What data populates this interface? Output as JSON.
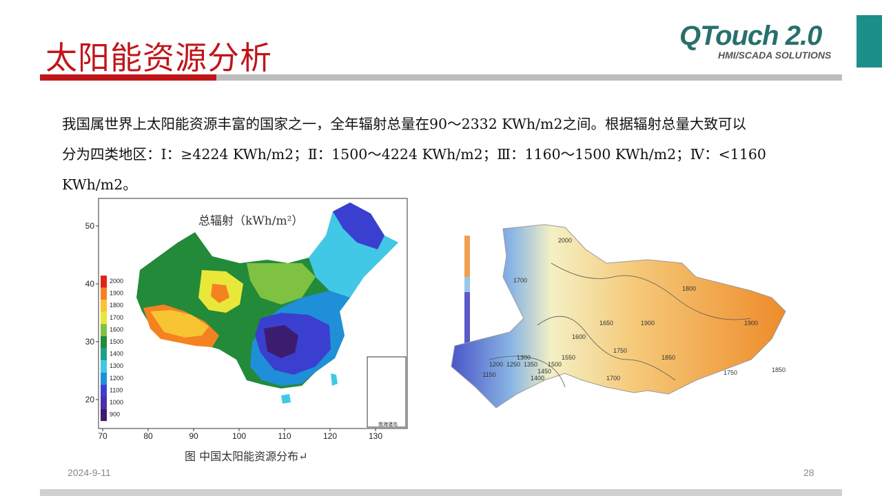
{
  "slide": {
    "title": "太阳能资源分析",
    "paragraph_line1": "我国属世界上太阳能资源丰富的国家之一，全年辐射总量在90～2332 KWh/m2之间。根据辐射总量大致可以",
    "paragraph_line2": "分为四类地区：Ⅰ：≥4224 KWh/m2；Ⅱ：1500～4224 KWh/m2；Ⅲ：1160～1500 KWh/m2；Ⅳ：<1160",
    "paragraph_line3": "KWh/m2。",
    "date": "2024-9-11",
    "page_number": "28"
  },
  "logo": {
    "main": "QTouch 2.0",
    "sub": "HMI/SCADA SOLUTIONS"
  },
  "colors": {
    "title_red": "#c0161b",
    "teal": "#1c8f8a",
    "logo_green": "#27706c"
  },
  "left_map": {
    "title": "总辐射（kWh/m²）",
    "caption": "图 中国太阳能资源分布↵",
    "inset_label": "南海诸岛",
    "legend_values": [
      "2000",
      "1900",
      "1800",
      "1700",
      "1600",
      "1500",
      "1400",
      "1300",
      "1200",
      "1100",
      "1000",
      "900"
    ],
    "legend_colors": [
      "#e2231a",
      "#f58220",
      "#f7c433",
      "#e9e73a",
      "#7fc241",
      "#238a3a",
      "#1b9e8c",
      "#41c8e6",
      "#1f8fd8",
      "#3b3fcf",
      "#4b2fa8",
      "#3b1c6e"
    ],
    "x_ticks": [
      "70",
      "80",
      "90",
      "100",
      "110",
      "120",
      "130"
    ],
    "y_ticks": [
      "50",
      "40",
      "30",
      "20"
    ]
  },
  "right_map": {
    "contour_labels": [
      "2000",
      "1900",
      "1900",
      "1850",
      "1850",
      "1800",
      "1750",
      "1750",
      "1700",
      "1700",
      "1650",
      "1600",
      "1550",
      "1500",
      "1450",
      "1400",
      "1350",
      "1300",
      "1250",
      "1200",
      "1150"
    ]
  }
}
